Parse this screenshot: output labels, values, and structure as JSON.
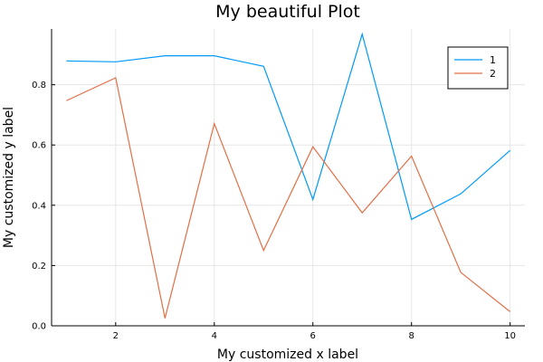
{
  "chart_data": {
    "type": "line",
    "title": "My beautiful Plot",
    "xlabel": "My customized x label",
    "ylabel": "My customized y label",
    "xlim": [
      0.7,
      10.3
    ],
    "ylim": [
      0.0,
      0.985
    ],
    "xticks": [
      2,
      4,
      6,
      8,
      10
    ],
    "yticks": [
      0.0,
      0.2,
      0.4,
      0.6,
      0.8
    ],
    "ytick_labels": [
      "0.0",
      "0.2",
      "0.4",
      "0.6",
      "0.8"
    ],
    "grid": true,
    "legend_position": "top-right",
    "x": [
      1,
      2,
      3,
      4,
      5,
      6,
      7,
      8,
      9,
      10
    ],
    "series": [
      {
        "name": "1",
        "color": "#009af9",
        "values": [
          0.879,
          0.876,
          0.896,
          0.896,
          0.861,
          0.419,
          0.968,
          0.353,
          0.438,
          0.582
        ]
      },
      {
        "name": "2",
        "color": "#e26f46",
        "values": [
          0.747,
          0.823,
          0.025,
          0.671,
          0.25,
          0.594,
          0.375,
          0.563,
          0.177,
          0.047
        ]
      }
    ]
  }
}
